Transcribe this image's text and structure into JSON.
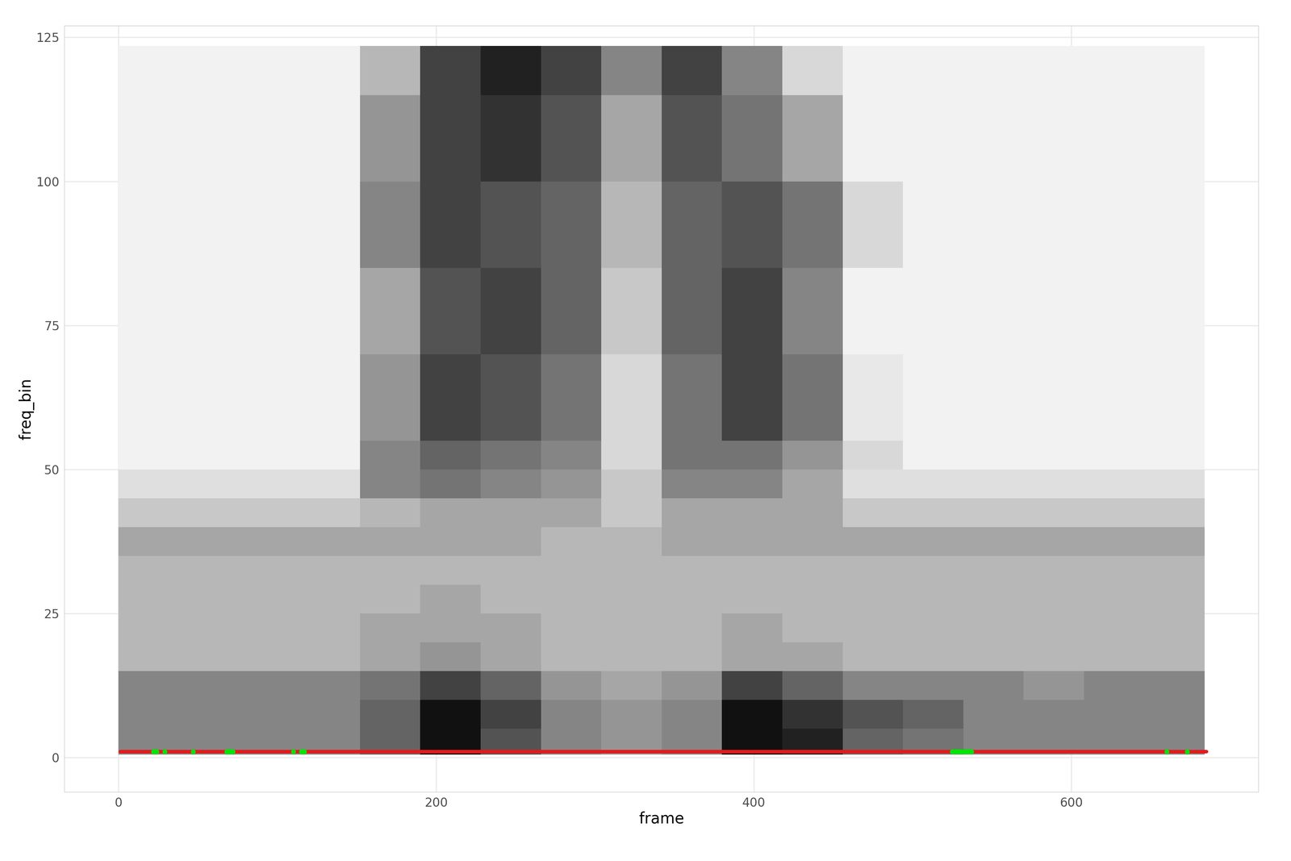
{
  "chart_data": {
    "type": "heatmap",
    "x_label": "frame",
    "y_label": "freq_bin",
    "xlim": [
      -34,
      718
    ],
    "ylim": [
      -6,
      127
    ],
    "xticks": [
      0,
      200,
      400,
      600
    ],
    "yticks": [
      0,
      25,
      50,
      75,
      100,
      125
    ],
    "grid": true,
    "x_edges": [
      0,
      38,
      76,
      114,
      152,
      190,
      228,
      266,
      304,
      342,
      380,
      418,
      456,
      494,
      532,
      570,
      608,
      646,
      684
    ],
    "y_edges": [
      0.5,
      5,
      10,
      15,
      20,
      25,
      30,
      35,
      40,
      45,
      50,
      55,
      60,
      65,
      70,
      75,
      80,
      85,
      90,
      95,
      100,
      105,
      110,
      115,
      120,
      123.5
    ],
    "cells": [
      [
        0.45,
        0.45,
        0.45,
        0.45,
        0.55,
        0.8,
        0.6,
        0.45,
        0.4,
        0.45,
        0.8,
        0.75,
        0.55,
        0.5,
        0.45,
        0.45,
        0.45,
        0.45
      ],
      [
        0.45,
        0.45,
        0.45,
        0.45,
        0.55,
        0.8,
        0.65,
        0.45,
        0.4,
        0.45,
        0.8,
        0.7,
        0.6,
        0.55,
        0.45,
        0.45,
        0.45,
        0.45
      ],
      [
        0.45,
        0.45,
        0.45,
        0.45,
        0.5,
        0.65,
        0.55,
        0.4,
        0.35,
        0.4,
        0.65,
        0.55,
        0.45,
        0.45,
        0.45,
        0.4,
        0.45,
        0.45
      ],
      [
        0.3,
        0.3,
        0.3,
        0.3,
        0.35,
        0.4,
        0.35,
        0.3,
        0.3,
        0.3,
        0.35,
        0.35,
        0.3,
        0.3,
        0.3,
        0.3,
        0.3,
        0.3
      ],
      [
        0.3,
        0.3,
        0.3,
        0.3,
        0.35,
        0.35,
        0.35,
        0.3,
        0.3,
        0.3,
        0.35,
        0.3,
        0.3,
        0.3,
        0.3,
        0.3,
        0.3,
        0.3
      ],
      [
        0.3,
        0.3,
        0.3,
        0.3,
        0.3,
        0.35,
        0.3,
        0.3,
        0.3,
        0.3,
        0.3,
        0.3,
        0.3,
        0.3,
        0.3,
        0.3,
        0.3,
        0.3
      ],
      [
        0.3,
        0.3,
        0.3,
        0.3,
        0.3,
        0.3,
        0.3,
        0.3,
        0.3,
        0.3,
        0.3,
        0.3,
        0.3,
        0.3,
        0.3,
        0.3,
        0.3,
        0.3
      ],
      [
        0.35,
        0.35,
        0.35,
        0.35,
        0.35,
        0.35,
        0.35,
        0.3,
        0.3,
        0.35,
        0.35,
        0.35,
        0.35,
        0.35,
        0.35,
        0.35,
        0.35,
        0.35
      ],
      [
        0.25,
        0.25,
        0.25,
        0.25,
        0.3,
        0.35,
        0.35,
        0.35,
        0.25,
        0.35,
        0.35,
        0.35,
        0.25,
        0.25,
        0.25,
        0.25,
        0.25,
        0.25
      ],
      [
        0.18,
        0.18,
        0.18,
        0.18,
        0.45,
        0.5,
        0.45,
        0.4,
        0.25,
        0.45,
        0.45,
        0.35,
        0.18,
        0.18,
        0.18,
        0.18,
        0.18,
        0.18
      ],
      [
        0.12,
        0.12,
        0.12,
        0.12,
        0.45,
        0.55,
        0.5,
        0.45,
        0.2,
        0.5,
        0.5,
        0.4,
        0.2,
        0.12,
        0.12,
        0.12,
        0.12,
        0.12
      ],
      [
        0.12,
        0.12,
        0.12,
        0.12,
        0.4,
        0.65,
        0.6,
        0.5,
        0.2,
        0.5,
        0.65,
        0.5,
        0.15,
        0.12,
        0.12,
        0.12,
        0.12,
        0.12
      ],
      [
        0.12,
        0.12,
        0.12,
        0.12,
        0.4,
        0.65,
        0.6,
        0.5,
        0.2,
        0.5,
        0.65,
        0.5,
        0.15,
        0.12,
        0.12,
        0.12,
        0.12,
        0.12
      ],
      [
        0.12,
        0.12,
        0.12,
        0.12,
        0.4,
        0.65,
        0.6,
        0.5,
        0.2,
        0.5,
        0.65,
        0.5,
        0.15,
        0.12,
        0.12,
        0.12,
        0.12,
        0.12
      ],
      [
        0.12,
        0.12,
        0.12,
        0.12,
        0.35,
        0.6,
        0.65,
        0.55,
        0.25,
        0.55,
        0.65,
        0.45,
        0.12,
        0.12,
        0.12,
        0.12,
        0.12,
        0.12
      ],
      [
        0.12,
        0.12,
        0.12,
        0.12,
        0.35,
        0.6,
        0.65,
        0.55,
        0.25,
        0.55,
        0.65,
        0.45,
        0.12,
        0.12,
        0.12,
        0.12,
        0.12,
        0.12
      ],
      [
        0.12,
        0.12,
        0.12,
        0.12,
        0.35,
        0.6,
        0.65,
        0.55,
        0.25,
        0.55,
        0.65,
        0.45,
        0.12,
        0.12,
        0.12,
        0.12,
        0.12,
        0.12
      ],
      [
        0.12,
        0.12,
        0.12,
        0.12,
        0.45,
        0.65,
        0.6,
        0.55,
        0.3,
        0.55,
        0.6,
        0.5,
        0.2,
        0.12,
        0.12,
        0.12,
        0.12,
        0.12
      ],
      [
        0.12,
        0.12,
        0.12,
        0.12,
        0.45,
        0.65,
        0.6,
        0.55,
        0.3,
        0.55,
        0.6,
        0.5,
        0.2,
        0.12,
        0.12,
        0.12,
        0.12,
        0.12
      ],
      [
        0.12,
        0.12,
        0.12,
        0.12,
        0.45,
        0.65,
        0.6,
        0.55,
        0.3,
        0.55,
        0.6,
        0.5,
        0.2,
        0.12,
        0.12,
        0.12,
        0.12,
        0.12
      ],
      [
        0.12,
        0.12,
        0.12,
        0.12,
        0.4,
        0.65,
        0.7,
        0.6,
        0.35,
        0.6,
        0.5,
        0.35,
        0.12,
        0.12,
        0.12,
        0.12,
        0.12,
        0.12
      ],
      [
        0.12,
        0.12,
        0.12,
        0.12,
        0.4,
        0.65,
        0.7,
        0.6,
        0.35,
        0.6,
        0.5,
        0.35,
        0.12,
        0.12,
        0.12,
        0.12,
        0.12,
        0.12
      ],
      [
        0.12,
        0.12,
        0.12,
        0.12,
        0.4,
        0.65,
        0.7,
        0.6,
        0.35,
        0.6,
        0.5,
        0.35,
        0.12,
        0.12,
        0.12,
        0.12,
        0.12,
        0.12
      ],
      [
        0.12,
        0.12,
        0.12,
        0.12,
        0.3,
        0.65,
        0.75,
        0.65,
        0.45,
        0.65,
        0.45,
        0.2,
        0.12,
        0.12,
        0.12,
        0.12,
        0.12,
        0.12
      ],
      [
        0.12,
        0.12,
        0.12,
        0.12,
        0.3,
        0.65,
        0.75,
        0.65,
        0.45,
        0.65,
        0.45,
        0.2,
        0.12,
        0.12,
        0.12,
        0.12,
        0.12,
        0.12
      ]
    ],
    "series": [
      {
        "type": "line",
        "color": "#e41a1c",
        "x": [
          1,
          685
        ],
        "values": [
          1,
          1
        ]
      },
      {
        "type": "scatter",
        "color": "#00e600",
        "marker": "circle",
        "x": [
          22,
          23,
          24,
          29,
          47,
          68,
          69,
          70,
          71,
          72,
          110,
          115,
          116,
          117,
          525,
          526,
          527,
          528,
          529,
          530,
          531,
          532,
          533,
          534,
          535,
          536,
          537,
          660,
          673
        ],
        "values": [
          1,
          1,
          1,
          1,
          1,
          1,
          1,
          1,
          1,
          1,
          1,
          1,
          1,
          1,
          1,
          1,
          1,
          1,
          1,
          1,
          1,
          1,
          1,
          1,
          1,
          1,
          1,
          1,
          1
        ]
      }
    ]
  }
}
